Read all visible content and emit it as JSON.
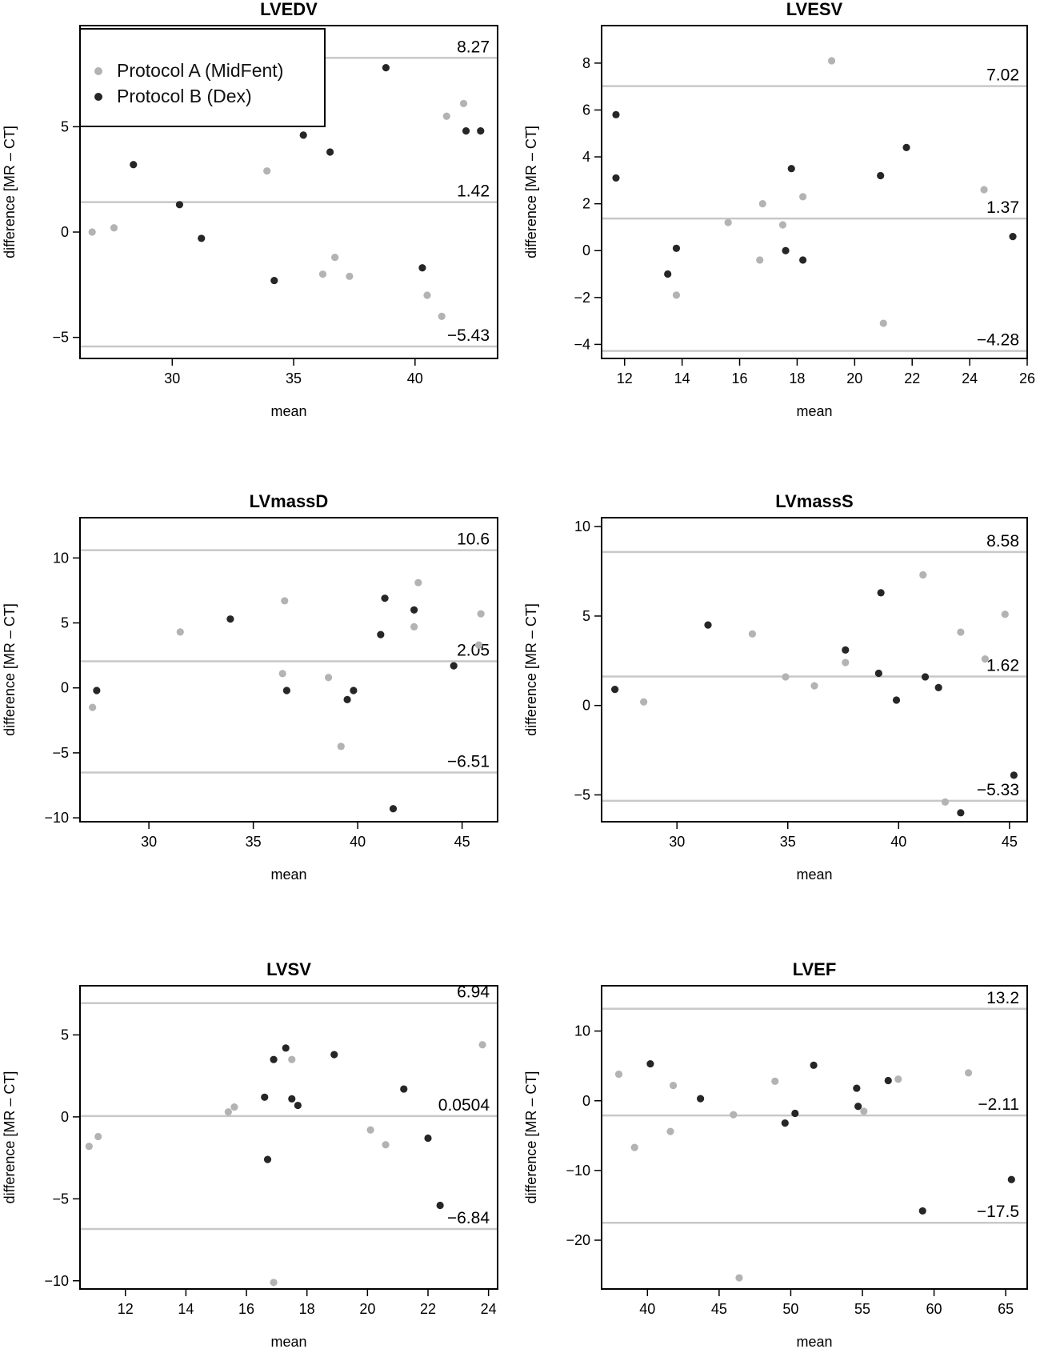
{
  "legend": {
    "entries": [
      {
        "label": "Protocol A (MidFent)",
        "color": "#b3b3b3"
      },
      {
        "label": "Protocol B (Dex)",
        "color": "#262626"
      }
    ]
  },
  "colors": {
    "protocol_a": "#b3b3b3",
    "protocol_b": "#262626",
    "reference_line": "#c8c8c8",
    "axis": "#000000"
  },
  "chart_data": [
    {
      "type": "scatter",
      "title": "LVEDV",
      "xlabel": "mean",
      "ylabel": "difference [MR – CT]",
      "xlim": [
        26.2,
        43.4
      ],
      "ylim": [
        -6.0,
        9.8
      ],
      "xticks": [
        30,
        35,
        40
      ],
      "xtick_labels": [
        "30",
        "35",
        "40"
      ],
      "yticks": [
        -5,
        0,
        5
      ],
      "ytick_labels": [
        "−5",
        "0",
        "5"
      ],
      "hlines": [
        {
          "y": 8.27,
          "label": "8.27"
        },
        {
          "y": 1.42,
          "label": "1.42"
        },
        {
          "y": -5.43,
          "label": "−5.43"
        }
      ],
      "series": [
        {
          "name": "Protocol A (MidFent)",
          "points": [
            [
              26.7,
              0.0
            ],
            [
              27.6,
              0.2
            ],
            [
              33.9,
              2.9
            ],
            [
              36.2,
              -2.0
            ],
            [
              36.7,
              -1.2
            ],
            [
              37.3,
              -2.1
            ],
            [
              40.5,
              -3.0
            ],
            [
              41.1,
              -4.0
            ],
            [
              41.3,
              5.5
            ],
            [
              42.0,
              6.1
            ]
          ]
        },
        {
          "name": "Protocol B (Dex)",
          "points": [
            [
              28.4,
              3.2
            ],
            [
              30.3,
              1.3
            ],
            [
              31.2,
              -0.3
            ],
            [
              34.2,
              -2.3
            ],
            [
              35.4,
              4.6
            ],
            [
              36.5,
              3.8
            ],
            [
              38.8,
              7.8
            ],
            [
              40.3,
              -1.7
            ],
            [
              42.1,
              4.8
            ],
            [
              42.7,
              4.8
            ]
          ]
        }
      ]
    },
    {
      "type": "scatter",
      "title": "LVESV",
      "xlabel": "mean",
      "ylabel": "difference [MR – CT]",
      "xlim": [
        11.2,
        26.0
      ],
      "ylim": [
        -4.6,
        9.6
      ],
      "xticks": [
        12,
        14,
        16,
        18,
        20,
        22,
        24,
        26
      ],
      "xtick_labels": [
        "12",
        "14",
        "16",
        "18",
        "20",
        "22",
        "24",
        "26"
      ],
      "yticks": [
        -4,
        -2,
        0,
        2,
        4,
        6,
        8
      ],
      "ytick_labels": [
        "−4",
        "−2",
        "0",
        "2",
        "4",
        "6",
        "8"
      ],
      "hlines": [
        {
          "y": 7.02,
          "label": "7.02"
        },
        {
          "y": 1.37,
          "label": "1.37"
        },
        {
          "y": -4.28,
          "label": "−4.28"
        }
      ],
      "series": [
        {
          "name": "Protocol A (MidFent)",
          "points": [
            [
              13.8,
              -1.9
            ],
            [
              15.6,
              1.2
            ],
            [
              16.7,
              -0.4
            ],
            [
              16.8,
              2.0
            ],
            [
              17.5,
              1.1
            ],
            [
              18.2,
              2.3
            ],
            [
              19.2,
              8.1
            ],
            [
              21.0,
              -3.1
            ],
            [
              24.5,
              2.6
            ]
          ]
        },
        {
          "name": "Protocol B (Dex)",
          "points": [
            [
              11.7,
              5.8
            ],
            [
              11.7,
              3.1
            ],
            [
              13.5,
              -1.0
            ],
            [
              13.8,
              0.1
            ],
            [
              17.6,
              0.0
            ],
            [
              17.8,
              3.5
            ],
            [
              18.2,
              -0.4
            ],
            [
              20.9,
              3.2
            ],
            [
              21.8,
              4.4
            ],
            [
              25.5,
              0.6
            ]
          ]
        }
      ]
    },
    {
      "type": "scatter",
      "title": "LVmassD",
      "xlabel": "mean",
      "ylabel": "difference [MR – CT]",
      "xlim": [
        26.7,
        46.7
      ],
      "ylim": [
        -10.3,
        13.1
      ],
      "xticks": [
        30,
        35,
        40,
        45
      ],
      "xtick_labels": [
        "30",
        "35",
        "40",
        "45"
      ],
      "yticks": [
        -10,
        -5,
        0,
        5,
        10
      ],
      "ytick_labels": [
        "−10",
        "−5",
        "0",
        "5",
        "10"
      ],
      "hlines": [
        {
          "y": 10.6,
          "label": "10.6"
        },
        {
          "y": 2.05,
          "label": "2.05"
        },
        {
          "y": -6.51,
          "label": "−6.51"
        }
      ],
      "series": [
        {
          "name": "Protocol A (MidFent)",
          "points": [
            [
              27.3,
              -1.5
            ],
            [
              31.5,
              4.3
            ],
            [
              36.4,
              1.1
            ],
            [
              36.5,
              6.7
            ],
            [
              38.6,
              0.8
            ],
            [
              39.2,
              -4.5
            ],
            [
              42.7,
              4.7
            ],
            [
              42.9,
              8.1
            ],
            [
              45.8,
              3.3
            ],
            [
              45.9,
              5.7
            ]
          ]
        },
        {
          "name": "Protocol B (Dex)",
          "points": [
            [
              27.5,
              -0.2
            ],
            [
              33.9,
              5.3
            ],
            [
              36.6,
              -0.2
            ],
            [
              39.5,
              -0.9
            ],
            [
              39.8,
              -0.2
            ],
            [
              41.1,
              4.1
            ],
            [
              41.3,
              6.9
            ],
            [
              41.7,
              -9.3
            ],
            [
              42.7,
              6.0
            ],
            [
              44.6,
              1.7
            ]
          ]
        }
      ]
    },
    {
      "type": "scatter",
      "title": "LVmassS",
      "xlabel": "mean",
      "ylabel": "difference [MR – CT]",
      "xlim": [
        26.6,
        45.8
      ],
      "ylim": [
        -6.5,
        10.5
      ],
      "xticks": [
        30,
        35,
        40,
        45
      ],
      "xtick_labels": [
        "30",
        "35",
        "40",
        "45"
      ],
      "yticks": [
        -5,
        0,
        5,
        10
      ],
      "ytick_labels": [
        "−5",
        "0",
        "5",
        "10"
      ],
      "hlines": [
        {
          "y": 8.58,
          "label": "8.58"
        },
        {
          "y": 1.62,
          "label": "1.62"
        },
        {
          "y": -5.33,
          "label": "−5.33"
        }
      ],
      "series": [
        {
          "name": "Protocol A (MidFent)",
          "points": [
            [
              28.5,
              0.2
            ],
            [
              33.4,
              4.0
            ],
            [
              34.9,
              1.6
            ],
            [
              36.2,
              1.1
            ],
            [
              37.6,
              2.4
            ],
            [
              41.1,
              7.3
            ],
            [
              42.1,
              -5.4
            ],
            [
              42.8,
              4.1
            ],
            [
              43.9,
              2.6
            ],
            [
              44.8,
              5.1
            ]
          ]
        },
        {
          "name": "Protocol B (Dex)",
          "points": [
            [
              27.2,
              0.9
            ],
            [
              31.4,
              4.5
            ],
            [
              37.6,
              3.1
            ],
            [
              39.1,
              1.8
            ],
            [
              39.2,
              6.3
            ],
            [
              39.9,
              0.3
            ],
            [
              41.2,
              1.6
            ],
            [
              41.8,
              1.0
            ],
            [
              42.8,
              -6.0
            ],
            [
              45.2,
              -3.9
            ]
          ]
        }
      ]
    },
    {
      "type": "scatter",
      "title": "LVSV",
      "xlabel": "mean",
      "ylabel": "difference [MR – CT]",
      "xlim": [
        10.5,
        24.3
      ],
      "ylim": [
        -10.5,
        8.0
      ],
      "xticks": [
        12,
        14,
        16,
        18,
        20,
        22,
        24
      ],
      "xtick_labels": [
        "12",
        "14",
        "16",
        "18",
        "20",
        "22",
        "24"
      ],
      "yticks": [
        -10,
        -5,
        0,
        5
      ],
      "ytick_labels": [
        "−10",
        "−5",
        "0",
        "5"
      ],
      "hlines": [
        {
          "y": 6.94,
          "label": "6.94"
        },
        {
          "y": 0.0504,
          "label": "0.0504"
        },
        {
          "y": -6.84,
          "label": "−6.84"
        }
      ],
      "series": [
        {
          "name": "Protocol A (MidFent)",
          "points": [
            [
              10.8,
              -1.8
            ],
            [
              11.1,
              -1.2
            ],
            [
              15.4,
              0.3
            ],
            [
              15.6,
              0.6
            ],
            [
              16.9,
              -10.1
            ],
            [
              17.5,
              3.5
            ],
            [
              20.1,
              -0.8
            ],
            [
              20.6,
              -1.7
            ],
            [
              23.8,
              4.4
            ]
          ]
        },
        {
          "name": "Protocol B (Dex)",
          "points": [
            [
              16.6,
              1.2
            ],
            [
              16.7,
              -2.6
            ],
            [
              16.9,
              3.5
            ],
            [
              17.3,
              4.2
            ],
            [
              17.5,
              1.1
            ],
            [
              17.7,
              0.7
            ],
            [
              18.9,
              3.8
            ],
            [
              21.2,
              1.7
            ],
            [
              22.0,
              -1.3
            ],
            [
              22.4,
              -5.4
            ]
          ]
        }
      ]
    },
    {
      "type": "scatter",
      "title": "LVEF",
      "xlabel": "mean",
      "ylabel": "difference [MR – CT]",
      "xlim": [
        36.8,
        66.5
      ],
      "ylim": [
        -27.0,
        16.5
      ],
      "xticks": [
        40,
        45,
        50,
        55,
        60,
        65
      ],
      "xtick_labels": [
        "40",
        "45",
        "50",
        "55",
        "60",
        "65"
      ],
      "yticks": [
        -20,
        -10,
        0,
        10
      ],
      "ytick_labels": [
        "−20",
        "−10",
        "0",
        "10"
      ],
      "hlines": [
        {
          "y": 13.2,
          "label": "13.2"
        },
        {
          "y": -2.11,
          "label": "−2.11"
        },
        {
          "y": -17.5,
          "label": "−17.5"
        }
      ],
      "series": [
        {
          "name": "Protocol A (MidFent)",
          "points": [
            [
              38.0,
              3.8
            ],
            [
              39.1,
              -6.7
            ],
            [
              41.6,
              -4.4
            ],
            [
              41.8,
              2.2
            ],
            [
              46.0,
              -2.0
            ],
            [
              46.4,
              -25.4
            ],
            [
              48.9,
              2.8
            ],
            [
              55.1,
              -1.5
            ],
            [
              57.5,
              3.1
            ],
            [
              62.4,
              4.0
            ]
          ]
        },
        {
          "name": "Protocol B (Dex)",
          "points": [
            [
              40.2,
              5.3
            ],
            [
              43.7,
              0.3
            ],
            [
              49.6,
              -3.2
            ],
            [
              50.3,
              -1.8
            ],
            [
              51.6,
              5.1
            ],
            [
              54.6,
              1.8
            ],
            [
              54.7,
              -0.8
            ],
            [
              56.8,
              2.9
            ],
            [
              59.2,
              -15.8
            ],
            [
              65.4,
              -11.3
            ]
          ]
        }
      ]
    }
  ]
}
